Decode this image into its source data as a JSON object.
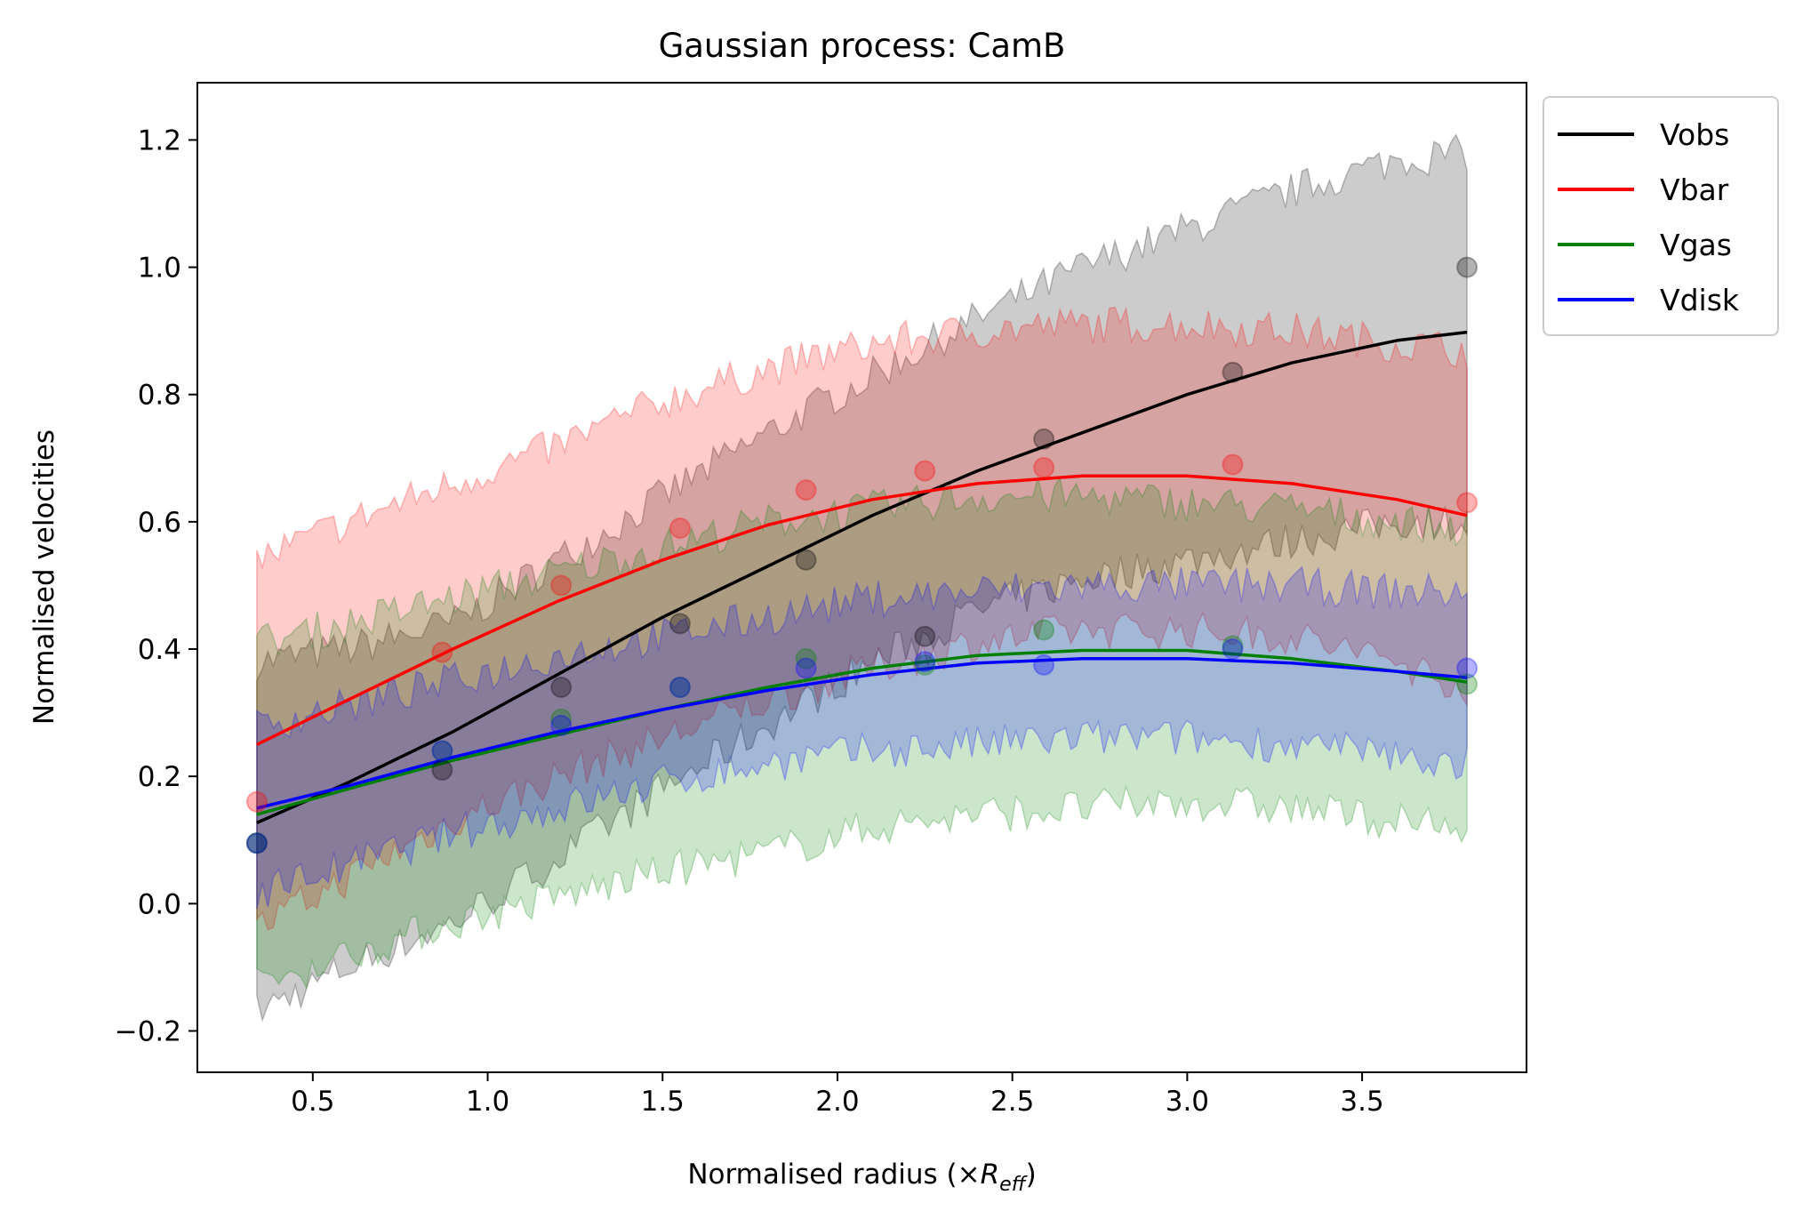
{
  "chart_data": {
    "type": "line",
    "title": "Gaussian process: CamB",
    "xlabel_main": "Normalised radius (×",
    "xlabel_symbol": "R",
    "xlabel_subscript": "eff",
    "xlabel_close": ")",
    "ylabel": "Normalised velocities",
    "xlim": [
      0.17,
      3.97
    ],
    "ylim": [
      -0.265,
      1.29
    ],
    "x_ticks": [
      0.5,
      1.0,
      1.5,
      2.0,
      2.5,
      3.0,
      3.5
    ],
    "x_tick_labels": [
      "0.5",
      "1.0",
      "1.5",
      "2.0",
      "2.5",
      "3.0",
      "3.5"
    ],
    "y_ticks": [
      -0.2,
      0.0,
      0.2,
      0.4,
      0.6,
      0.8,
      1.0,
      1.2
    ],
    "y_tick_labels": [
      "−0.2",
      "0.0",
      "0.2",
      "0.4",
      "0.6",
      "0.8",
      "1.0",
      "1.2"
    ],
    "grid": false,
    "legend_placement": "outside top-right",
    "legend": [
      "Vobs",
      "Vbar",
      "Vgas",
      "Vdisk"
    ],
    "points_x": [
      0.34,
      0.87,
      1.21,
      1.55,
      1.91,
      2.25,
      2.59,
      3.13,
      3.8
    ],
    "series": [
      {
        "name": "Vobs",
        "color": "#000000",
        "points_y": [
          0.095,
          0.21,
          0.34,
          0.44,
          0.54,
          0.42,
          0.73,
          0.835,
          1.0
        ],
        "curve_x": [
          0.34,
          0.6,
          0.9,
          1.2,
          1.5,
          1.8,
          2.1,
          2.4,
          2.7,
          3.0,
          3.3,
          3.6,
          3.8
        ],
        "curve_y": [
          0.127,
          0.19,
          0.27,
          0.36,
          0.45,
          0.53,
          0.61,
          0.68,
          0.74,
          0.8,
          0.85,
          0.885,
          0.898
        ],
        "band_upper": [
          0.38,
          0.4,
          0.44,
          0.54,
          0.64,
          0.74,
          0.83,
          0.92,
          1.0,
          1.06,
          1.12,
          1.17,
          1.18
        ],
        "band_lower": [
          -0.17,
          -0.1,
          -0.03,
          0.07,
          0.18,
          0.28,
          0.38,
          0.46,
          0.51,
          0.54,
          0.57,
          0.6,
          0.6
        ]
      },
      {
        "name": "Vbar",
        "color": "#ff0000",
        "points_y": [
          0.16,
          0.395,
          0.5,
          0.59,
          0.65,
          0.68,
          0.685,
          0.69,
          0.63
        ],
        "curve_x": [
          0.34,
          0.6,
          0.9,
          1.2,
          1.5,
          1.8,
          2.1,
          2.4,
          2.7,
          3.0,
          3.3,
          3.6,
          3.8
        ],
        "curve_y": [
          0.25,
          0.32,
          0.4,
          0.475,
          0.54,
          0.595,
          0.635,
          0.66,
          0.672,
          0.672,
          0.66,
          0.635,
          0.61
        ],
        "band_upper": [
          0.54,
          0.6,
          0.66,
          0.72,
          0.79,
          0.84,
          0.88,
          0.9,
          0.91,
          0.91,
          0.9,
          0.88,
          0.87
        ],
        "band_lower": [
          -0.04,
          0.04,
          0.13,
          0.2,
          0.26,
          0.32,
          0.37,
          0.41,
          0.43,
          0.43,
          0.42,
          0.38,
          0.34
        ]
      },
      {
        "name": "Vgas",
        "color": "#008000",
        "points_y": [
          0.095,
          0.24,
          0.29,
          0.34,
          0.385,
          0.375,
          0.43,
          0.405,
          0.345
        ],
        "curve_x": [
          0.34,
          0.6,
          0.9,
          1.2,
          1.5,
          1.8,
          2.1,
          2.4,
          2.7,
          3.0,
          3.3,
          3.6,
          3.8
        ],
        "curve_y": [
          0.14,
          0.18,
          0.225,
          0.265,
          0.305,
          0.34,
          0.37,
          0.39,
          0.398,
          0.398,
          0.385,
          0.365,
          0.348
        ],
        "band_upper": [
          0.41,
          0.44,
          0.48,
          0.52,
          0.56,
          0.6,
          0.62,
          0.64,
          0.64,
          0.63,
          0.62,
          0.6,
          0.59
        ],
        "band_lower": [
          -0.13,
          -0.08,
          -0.03,
          0.01,
          0.05,
          0.08,
          0.12,
          0.14,
          0.15,
          0.16,
          0.15,
          0.13,
          0.11
        ]
      },
      {
        "name": "Vdisk",
        "color": "#0000ff",
        "points_y": [
          0.095,
          0.24,
          0.28,
          0.34,
          0.37,
          0.38,
          0.375,
          0.4,
          0.37
        ],
        "curve_x": [
          0.34,
          0.6,
          0.9,
          1.2,
          1.5,
          1.8,
          2.1,
          2.4,
          2.7,
          3.0,
          3.3,
          3.6,
          3.8
        ],
        "curve_y": [
          0.15,
          0.185,
          0.23,
          0.27,
          0.305,
          0.335,
          0.36,
          0.378,
          0.385,
          0.385,
          0.378,
          0.365,
          0.355
        ],
        "band_upper": [
          0.28,
          0.31,
          0.35,
          0.39,
          0.42,
          0.45,
          0.48,
          0.49,
          0.5,
          0.5,
          0.5,
          0.49,
          0.49
        ],
        "band_lower": [
          0.02,
          0.06,
          0.11,
          0.15,
          0.19,
          0.22,
          0.24,
          0.25,
          0.26,
          0.26,
          0.25,
          0.23,
          0.22
        ]
      }
    ]
  }
}
